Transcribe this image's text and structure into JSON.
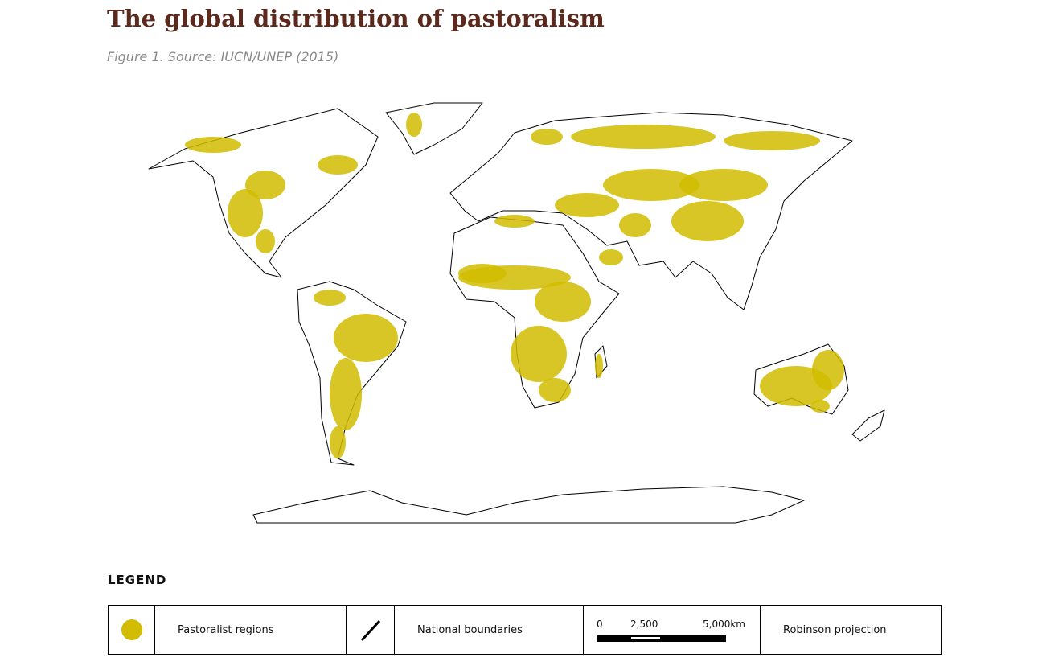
{
  "header": {
    "title": "The global distribution of pastoralism",
    "subtitle": "Figure 1. Source: IUCN/UNEP (2015)"
  },
  "legend": {
    "heading": "LEGEND",
    "items": [
      "Pastoralist regions",
      "National boundaries",
      "Robinson projection"
    ],
    "scale": {
      "labels": [
        "0",
        "2,500",
        "5,000km"
      ]
    }
  }
}
